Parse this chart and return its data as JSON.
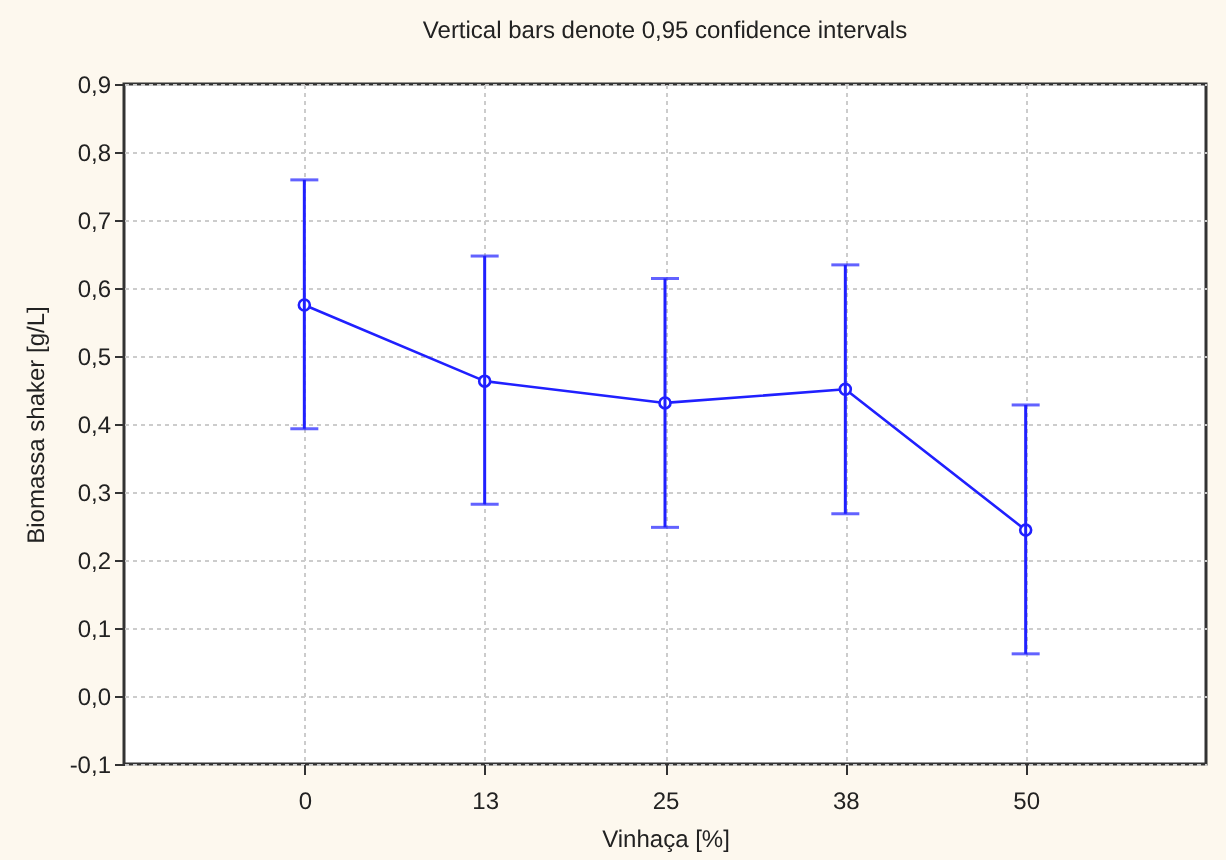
{
  "chart_data": {
    "type": "line",
    "title": "Vertical bars denote 0,95 confidence intervals",
    "xlabel": "Vinhaça [%]",
    "ylabel": "Biomassa shaker [g/L]",
    "categories": [
      "0",
      "13",
      "25",
      "38",
      "50"
    ],
    "series": [
      {
        "color": "#2020ff",
        "values": [
          0.575,
          0.463,
          0.431,
          0.451,
          0.244
        ],
        "errors": [
          [
            0.393,
            0.759
          ],
          [
            0.282,
            0.647
          ],
          [
            0.248,
            0.614
          ],
          [
            0.268,
            0.634
          ],
          [
            0.062,
            0.428
          ]
        ]
      }
    ],
    "ylim": [
      -0.1,
      0.9
    ],
    "yticks": [
      {
        "value": -0.1,
        "label": "-0,1"
      },
      {
        "value": 0,
        "label": "0,0"
      },
      {
        "value": 0.1,
        "label": "0,1"
      },
      {
        "value": 0.2,
        "label": "0,2"
      },
      {
        "value": 0.3,
        "label": "0,3"
      },
      {
        "value": 0.4,
        "label": "0,4"
      },
      {
        "value": 0.5,
        "label": "0,5"
      },
      {
        "value": 0.6,
        "label": "0,6"
      },
      {
        "value": 0.7,
        "label": "0,7"
      },
      {
        "value": 0.8,
        "label": "0,8"
      },
      {
        "value": 0.9,
        "label": "0,9"
      }
    ],
    "grid": true,
    "marker": "circle",
    "line_style": "solid"
  }
}
